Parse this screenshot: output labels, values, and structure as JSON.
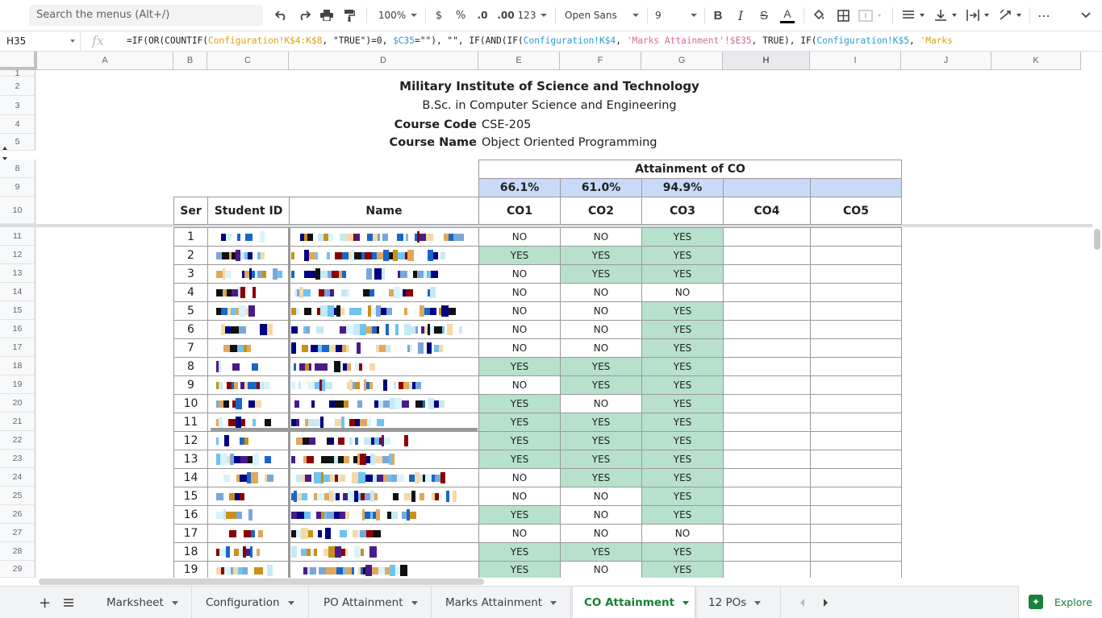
{
  "toolbar": {
    "search_placeholder": "Search the menus (Alt+/)",
    "zoom": "100%",
    "currency": "$",
    "percent": "%",
    "dec_decrease": ".0",
    "dec_increase": ".00",
    "format_more": "123",
    "font": "Open Sans",
    "font_size": "9",
    "bold": "B",
    "italic": "I",
    "strike": "S",
    "text_color": "A",
    "more": "⋯"
  },
  "formula_bar": {
    "cell_ref": "H35",
    "fx": "fx",
    "p1": "=IF(OR(COUNTIF(",
    "r1": "Configuration!K$4:K$8",
    "p2": ", \"TRUE\")=0, ",
    "r2": "$C35",
    "p3": "=\"\"), \"\", IF(AND(IF(",
    "r3": "Configuration!K$4",
    "p4": ", ",
    "r4": "'Marks Attainment'!$E35",
    "p5": ", TRUE), IF(",
    "r5": "Configuration!K$5",
    "p6": ", ",
    "r6": "'Marks"
  },
  "columns": [
    "A",
    "B",
    "C",
    "D",
    "E",
    "F",
    "G",
    "H",
    "I",
    "J",
    "K"
  ],
  "row_numbers": [
    "1",
    "2",
    "3",
    "4",
    "5",
    "8",
    "9",
    "10",
    "11",
    "12",
    "13",
    "14",
    "15",
    "16",
    "17",
    "18",
    "19",
    "20",
    "21",
    "22",
    "23",
    "24",
    "25",
    "26",
    "27",
    "28",
    "29"
  ],
  "header": {
    "title": "Military Institute of Science and Technology",
    "program": "B.Sc. in Computer Science and Engineering",
    "course_code_label": "Course Code",
    "course_code": "CSE-205",
    "course_name_label": "Course Name",
    "course_name": "Object Oriented Programming"
  },
  "table": {
    "attainment_label": "Attainment of CO",
    "percentages": [
      "66.1%",
      "61.0%",
      "94.9%",
      "",
      ""
    ],
    "col_ser": "Ser",
    "col_student_id": "Student ID",
    "col_name": "Name",
    "co_labels": [
      "CO1",
      "CO2",
      "CO3",
      "CO4",
      "CO5"
    ],
    "rows": [
      {
        "ser": "1",
        "co": [
          "NO",
          "NO",
          "YES"
        ]
      },
      {
        "ser": "2",
        "co": [
          "YES",
          "YES",
          "YES"
        ]
      },
      {
        "ser": "3",
        "co": [
          "NO",
          "YES",
          "YES"
        ]
      },
      {
        "ser": "4",
        "co": [
          "NO",
          "NO",
          "NO"
        ]
      },
      {
        "ser": "5",
        "co": [
          "NO",
          "NO",
          "YES"
        ]
      },
      {
        "ser": "6",
        "co": [
          "NO",
          "NO",
          "YES"
        ]
      },
      {
        "ser": "7",
        "co": [
          "NO",
          "NO",
          "YES"
        ]
      },
      {
        "ser": "8",
        "co": [
          "YES",
          "YES",
          "YES"
        ]
      },
      {
        "ser": "9",
        "co": [
          "NO",
          "YES",
          "YES"
        ]
      },
      {
        "ser": "10",
        "co": [
          "YES",
          "NO",
          "YES"
        ]
      },
      {
        "ser": "11",
        "co": [
          "YES",
          "YES",
          "YES"
        ]
      },
      {
        "ser": "12",
        "co": [
          "YES",
          "YES",
          "YES"
        ]
      },
      {
        "ser": "13",
        "co": [
          "YES",
          "YES",
          "YES"
        ]
      },
      {
        "ser": "14",
        "co": [
          "NO",
          "YES",
          "YES"
        ]
      },
      {
        "ser": "15",
        "co": [
          "NO",
          "NO",
          "YES"
        ]
      },
      {
        "ser": "16",
        "co": [
          "YES",
          "NO",
          "YES"
        ]
      },
      {
        "ser": "17",
        "co": [
          "NO",
          "NO",
          "NO"
        ]
      },
      {
        "ser": "18",
        "co": [
          "YES",
          "YES",
          "YES"
        ]
      },
      {
        "ser": "19",
        "co": [
          "YES",
          "NO",
          "YES"
        ]
      }
    ]
  },
  "colors": {
    "yes_fill": "#b7e1cd",
    "percent_fill": "#c9daf8",
    "active_tab": "#188038"
  },
  "sheet_tabs": [
    "Marksheet",
    "Configuration",
    "PO Attainment",
    "Marks Attainment",
    "CO Attainment",
    "12 POs"
  ],
  "active_tab": "CO Attainment",
  "explore_label": "Explore"
}
